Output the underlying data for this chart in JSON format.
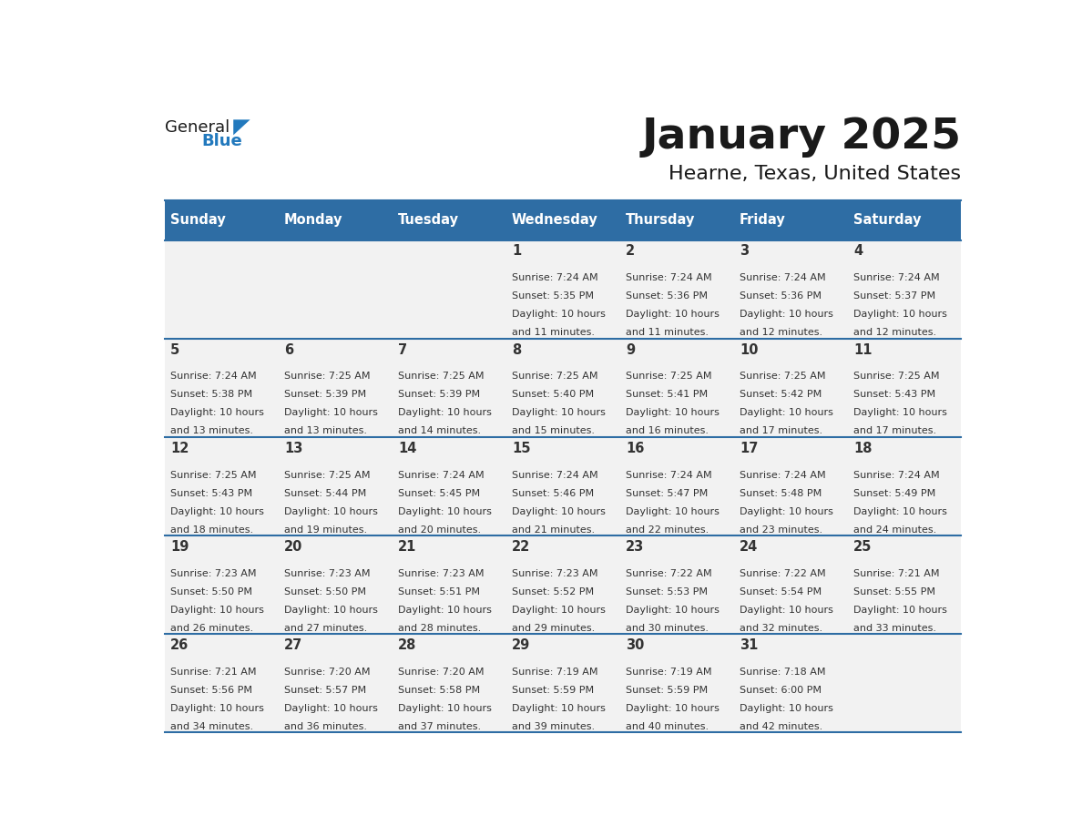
{
  "title": "January 2025",
  "subtitle": "Hearne, Texas, United States",
  "days_of_week": [
    "Sunday",
    "Monday",
    "Tuesday",
    "Wednesday",
    "Thursday",
    "Friday",
    "Saturday"
  ],
  "header_bg": "#2E6DA4",
  "header_text": "#FFFFFF",
  "cell_bg": "#F2F2F2",
  "border_color": "#2E6DA4",
  "text_color": "#333333",
  "calendar_data": [
    [
      {
        "day": null,
        "sunrise": null,
        "sunset": null,
        "daylight": null
      },
      {
        "day": null,
        "sunrise": null,
        "sunset": null,
        "daylight": null
      },
      {
        "day": null,
        "sunrise": null,
        "sunset": null,
        "daylight": null
      },
      {
        "day": 1,
        "sunrise": "7:24 AM",
        "sunset": "5:35 PM",
        "daylight": "10 hours and 11 minutes."
      },
      {
        "day": 2,
        "sunrise": "7:24 AM",
        "sunset": "5:36 PM",
        "daylight": "10 hours and 11 minutes."
      },
      {
        "day": 3,
        "sunrise": "7:24 AM",
        "sunset": "5:36 PM",
        "daylight": "10 hours and 12 minutes."
      },
      {
        "day": 4,
        "sunrise": "7:24 AM",
        "sunset": "5:37 PM",
        "daylight": "10 hours and 12 minutes."
      }
    ],
    [
      {
        "day": 5,
        "sunrise": "7:24 AM",
        "sunset": "5:38 PM",
        "daylight": "10 hours and 13 minutes."
      },
      {
        "day": 6,
        "sunrise": "7:25 AM",
        "sunset": "5:39 PM",
        "daylight": "10 hours and 13 minutes."
      },
      {
        "day": 7,
        "sunrise": "7:25 AM",
        "sunset": "5:39 PM",
        "daylight": "10 hours and 14 minutes."
      },
      {
        "day": 8,
        "sunrise": "7:25 AM",
        "sunset": "5:40 PM",
        "daylight": "10 hours and 15 minutes."
      },
      {
        "day": 9,
        "sunrise": "7:25 AM",
        "sunset": "5:41 PM",
        "daylight": "10 hours and 16 minutes."
      },
      {
        "day": 10,
        "sunrise": "7:25 AM",
        "sunset": "5:42 PM",
        "daylight": "10 hours and 17 minutes."
      },
      {
        "day": 11,
        "sunrise": "7:25 AM",
        "sunset": "5:43 PM",
        "daylight": "10 hours and 17 minutes."
      }
    ],
    [
      {
        "day": 12,
        "sunrise": "7:25 AM",
        "sunset": "5:43 PM",
        "daylight": "10 hours and 18 minutes."
      },
      {
        "day": 13,
        "sunrise": "7:25 AM",
        "sunset": "5:44 PM",
        "daylight": "10 hours and 19 minutes."
      },
      {
        "day": 14,
        "sunrise": "7:24 AM",
        "sunset": "5:45 PM",
        "daylight": "10 hours and 20 minutes."
      },
      {
        "day": 15,
        "sunrise": "7:24 AM",
        "sunset": "5:46 PM",
        "daylight": "10 hours and 21 minutes."
      },
      {
        "day": 16,
        "sunrise": "7:24 AM",
        "sunset": "5:47 PM",
        "daylight": "10 hours and 22 minutes."
      },
      {
        "day": 17,
        "sunrise": "7:24 AM",
        "sunset": "5:48 PM",
        "daylight": "10 hours and 23 minutes."
      },
      {
        "day": 18,
        "sunrise": "7:24 AM",
        "sunset": "5:49 PM",
        "daylight": "10 hours and 24 minutes."
      }
    ],
    [
      {
        "day": 19,
        "sunrise": "7:23 AM",
        "sunset": "5:50 PM",
        "daylight": "10 hours and 26 minutes."
      },
      {
        "day": 20,
        "sunrise": "7:23 AM",
        "sunset": "5:50 PM",
        "daylight": "10 hours and 27 minutes."
      },
      {
        "day": 21,
        "sunrise": "7:23 AM",
        "sunset": "5:51 PM",
        "daylight": "10 hours and 28 minutes."
      },
      {
        "day": 22,
        "sunrise": "7:23 AM",
        "sunset": "5:52 PM",
        "daylight": "10 hours and 29 minutes."
      },
      {
        "day": 23,
        "sunrise": "7:22 AM",
        "sunset": "5:53 PM",
        "daylight": "10 hours and 30 minutes."
      },
      {
        "day": 24,
        "sunrise": "7:22 AM",
        "sunset": "5:54 PM",
        "daylight": "10 hours and 32 minutes."
      },
      {
        "day": 25,
        "sunrise": "7:21 AM",
        "sunset": "5:55 PM",
        "daylight": "10 hours and 33 minutes."
      }
    ],
    [
      {
        "day": 26,
        "sunrise": "7:21 AM",
        "sunset": "5:56 PM",
        "daylight": "10 hours and 34 minutes."
      },
      {
        "day": 27,
        "sunrise": "7:20 AM",
        "sunset": "5:57 PM",
        "daylight": "10 hours and 36 minutes."
      },
      {
        "day": 28,
        "sunrise": "7:20 AM",
        "sunset": "5:58 PM",
        "daylight": "10 hours and 37 minutes."
      },
      {
        "day": 29,
        "sunrise": "7:19 AM",
        "sunset": "5:59 PM",
        "daylight": "10 hours and 39 minutes."
      },
      {
        "day": 30,
        "sunrise": "7:19 AM",
        "sunset": "5:59 PM",
        "daylight": "10 hours and 40 minutes."
      },
      {
        "day": 31,
        "sunrise": "7:18 AM",
        "sunset": "6:00 PM",
        "daylight": "10 hours and 42 minutes."
      },
      {
        "day": null,
        "sunrise": null,
        "sunset": null,
        "daylight": null
      }
    ]
  ],
  "logo_color_general": "#1a1a1a",
  "logo_color_blue": "#2279BD",
  "logo_triangle_color": "#2279BD"
}
